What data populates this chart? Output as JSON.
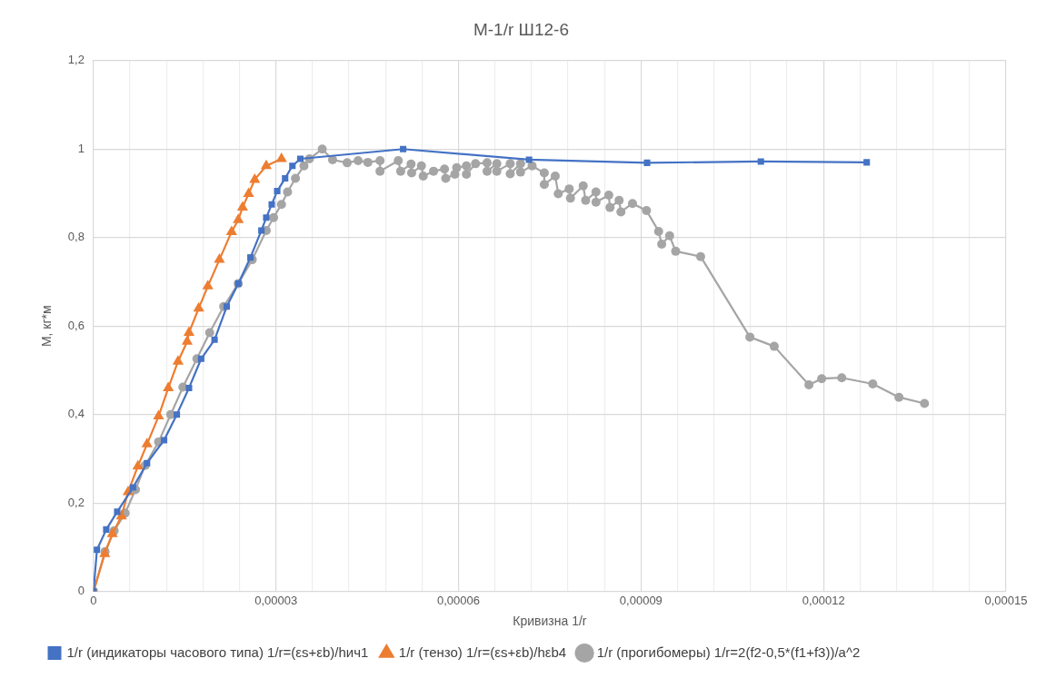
{
  "chart_data": {
    "type": "line",
    "title": "M-1/r Ш12-6",
    "xlabel": "Кривизна 1/r",
    "ylabel": "M, кг*м",
    "xlim": [
      0,
      0.00015
    ],
    "ylim": [
      0,
      1.2
    ],
    "xticks": [
      {
        "value": 0,
        "label": "0"
      },
      {
        "value": 6e-06,
        "label": null
      },
      {
        "value": 1.2e-05,
        "label": null
      },
      {
        "value": 1.8e-05,
        "label": null
      },
      {
        "value": 2.4e-05,
        "label": null
      },
      {
        "value": 3e-05,
        "label": "0,00003"
      },
      {
        "value": 3.6e-05,
        "label": null
      },
      {
        "value": 4.2e-05,
        "label": null
      },
      {
        "value": 4.8e-05,
        "label": null
      },
      {
        "value": 5.4e-05,
        "label": null
      },
      {
        "value": 6e-05,
        "label": "0,00006"
      },
      {
        "value": 6.6e-05,
        "label": null
      },
      {
        "value": 7.2e-05,
        "label": null
      },
      {
        "value": 7.8e-05,
        "label": null
      },
      {
        "value": 8.4e-05,
        "label": null
      },
      {
        "value": 9e-05,
        "label": "0,00009"
      },
      {
        "value": 9.6e-05,
        "label": null
      },
      {
        "value": 0.000102,
        "label": null
      },
      {
        "value": 0.000108,
        "label": null
      },
      {
        "value": 0.000114,
        "label": null
      },
      {
        "value": 0.00012,
        "label": "0,00012"
      },
      {
        "value": 0.000126,
        "label": null
      },
      {
        "value": 0.000132,
        "label": null
      },
      {
        "value": 0.000138,
        "label": null
      },
      {
        "value": 0.000144,
        "label": null
      },
      {
        "value": 0.00015,
        "label": "0,00015"
      }
    ],
    "yticks": [
      0,
      {
        "value": 0.2,
        "label": "0,2"
      },
      {
        "value": 0.4,
        "label": "0,4"
      },
      {
        "value": 0.6,
        "label": "0,6"
      },
      {
        "value": 0.8,
        "label": "0,8"
      },
      1,
      {
        "value": 1.2,
        "label": "1,2"
      }
    ],
    "grid": true,
    "legend": "bottom",
    "line_style": "solid",
    "series": [
      {
        "name": "1/r (индикаторы часового типа) 1/r=(εs+εb)/hич1",
        "color": "#4472c4",
        "marker": "square",
        "x": [
          0,
          5.7e-07,
          2.1e-06,
          3.9e-06,
          6.5e-06,
          8.8e-06,
          1.16e-05,
          1.37e-05,
          1.57e-05,
          1.77e-05,
          1.99e-05,
          2.19e-05,
          2.38e-05,
          2.58e-05,
          2.76e-05,
          2.84e-05,
          2.93e-05,
          3.02e-05,
          3.15e-05,
          3.27e-05,
          3.4e-05,
          5.09e-05,
          7.16e-05,
          9.1e-05,
          0.0001097,
          0.0001271
        ],
        "values": [
          0,
          0.094,
          0.14,
          0.18,
          0.235,
          0.29,
          0.342,
          0.4,
          0.46,
          0.526,
          0.569,
          0.644,
          0.696,
          0.755,
          0.816,
          0.845,
          0.875,
          0.905,
          0.934,
          0.962,
          0.978,
          1.0,
          0.976,
          0.969,
          0.972,
          0.97
        ]
      },
      {
        "name": "1/r (тензо) 1/r=(εs+εb)/hεb4",
        "color": "#ed7d31",
        "marker": "triangle",
        "x": [
          0,
          1.85e-06,
          3.1e-06,
          4.6e-06,
          5.7e-06,
          7.3e-06,
          8.8e-06,
          1.07e-05,
          1.23e-05,
          1.39e-05,
          1.54e-05,
          1.57e-05,
          1.73e-05,
          1.88e-05,
          2.07e-05,
          2.27e-05,
          2.38e-05,
          2.45e-05,
          2.55e-05,
          2.65e-05,
          2.84e-05,
          3.09e-05
        ],
        "values": [
          0,
          0.085,
          0.13,
          0.17,
          0.225,
          0.283,
          0.333,
          0.396,
          0.46,
          0.52,
          0.565,
          0.585,
          0.64,
          0.69,
          0.75,
          0.813,
          0.84,
          0.868,
          0.899,
          0.931,
          0.962,
          0.978
        ]
      },
      {
        "name": "1/r (прогибомеры) 1/r=2(f2-0,5*(f1+f3))/a^2",
        "color": "#a5a5a5",
        "marker": "circle",
        "x": [
          0,
          1.9e-06,
          3.4e-06,
          5.2e-06,
          6.9e-06,
          8.5e-06,
          1.07e-05,
          1.27e-05,
          1.47e-05,
          1.7e-05,
          1.91e-05,
          2.14e-05,
          2.38e-05,
          2.61e-05,
          2.84e-05,
          2.96e-05,
          3.09e-05,
          3.19e-05,
          3.32e-05,
          3.46e-05,
          3.55e-05,
          3.76e-05,
          3.93e-05,
          4.17e-05,
          4.35e-05,
          4.51e-05,
          4.71e-05,
          4.71e-05,
          5.01e-05,
          5.05e-05,
          5.22e-05,
          5.23e-05,
          5.39e-05,
          5.42e-05,
          5.59e-05,
          5.77e-05,
          5.79e-05,
          5.94e-05,
          5.97e-05,
          6.13e-05,
          6.13e-05,
          6.28e-05,
          6.47e-05,
          6.47e-05,
          6.63e-05,
          6.63e-05,
          6.85e-05,
          6.85e-05,
          7.02e-05,
          7.02e-05,
          7.21e-05,
          7.41e-05,
          7.41e-05,
          7.59e-05,
          7.64e-05,
          7.82e-05,
          7.84e-05,
          8.05e-05,
          8.09e-05,
          8.26e-05,
          8.26e-05,
          8.47e-05,
          8.49e-05,
          8.64e-05,
          8.67e-05,
          8.86e-05,
          9.09e-05,
          9.29e-05,
          9.34e-05,
          9.47e-05,
          9.57e-05,
          9.98e-05,
          0.0001079,
          0.0001119,
          0.0001176,
          0.0001197,
          0.000123,
          0.0001281,
          0.0001324,
          0.0001366
        ],
        "values": [
          0,
          0.09,
          0.137,
          0.177,
          0.23,
          0.285,
          0.338,
          0.4,
          0.462,
          0.526,
          0.585,
          0.644,
          0.696,
          0.75,
          0.816,
          0.845,
          0.875,
          0.903,
          0.934,
          0.962,
          0.978,
          1.0,
          0.976,
          0.969,
          0.974,
          0.97,
          0.974,
          0.95,
          0.974,
          0.95,
          0.966,
          0.946,
          0.962,
          0.939,
          0.95,
          0.955,
          0.934,
          0.943,
          0.958,
          0.962,
          0.943,
          0.967,
          0.969,
          0.95,
          0.967,
          0.95,
          0.967,
          0.944,
          0.967,
          0.948,
          0.962,
          0.946,
          0.92,
          0.939,
          0.899,
          0.91,
          0.889,
          0.917,
          0.884,
          0.903,
          0.88,
          0.896,
          0.868,
          0.884,
          0.858,
          0.877,
          0.861,
          0.814,
          0.785,
          0.804,
          0.769,
          0.757,
          0.575,
          0.554,
          0.467,
          0.481,
          0.483,
          0.469,
          0.439,
          0.425
        ]
      }
    ]
  }
}
